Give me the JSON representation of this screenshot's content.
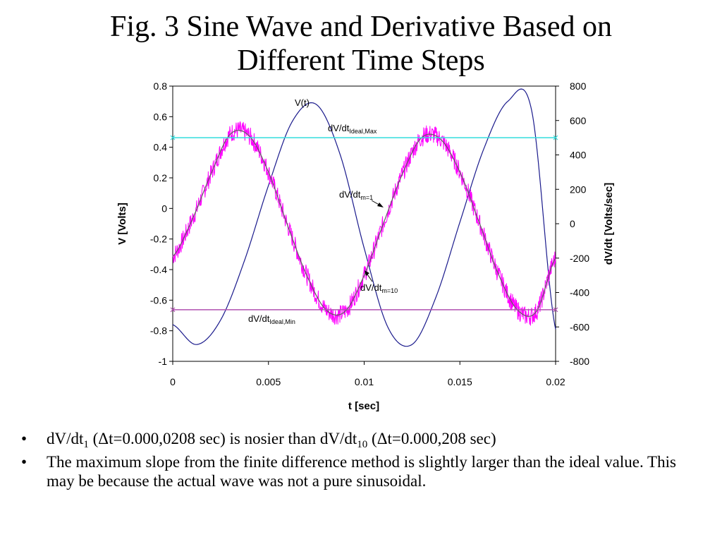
{
  "title": {
    "line1": "Fig. 3 Sine Wave and Derivative Based on",
    "line2": "Different Time Steps"
  },
  "chart_data": {
    "type": "line",
    "xlabel": "t [sec]",
    "ylabel_left": "V [Volts]",
    "ylabel_right": "dV/dt [Volts/sec]",
    "xlim": [
      0,
      0.02
    ],
    "ylim_left": [
      -1,
      0.8
    ],
    "ylim_right": [
      -800,
      800
    ],
    "x_ticks": [
      "0",
      "0.005",
      "0.01",
      "0.015",
      "0.02"
    ],
    "y_left_ticks": [
      "0.8",
      "0.6",
      "0.4",
      "0.2",
      "0",
      "-0.2",
      "-0.4",
      "-0.6",
      "-0.8",
      "-1"
    ],
    "y_right_ticks": [
      "800",
      "600",
      "400",
      "200",
      "0",
      "-200",
      "-400",
      "-600",
      "-800"
    ],
    "grid": false,
    "series": [
      {
        "name": "V(t)",
        "axis": "left",
        "color": "#1a1a8c",
        "frequency_hz": 100,
        "x": [
          0,
          0.00125,
          0.0025,
          0.00375,
          0.005,
          0.00625,
          0.0075,
          0.00875,
          0.01,
          0.01125,
          0.0125,
          0.01375,
          0.015,
          0.01625,
          0.0175,
          0.01875,
          0.02
        ],
        "y": [
          -0.76,
          -0.89,
          -0.73,
          -0.34,
          0.15,
          0.57,
          0.68,
          0.35,
          -0.26,
          -0.78,
          -0.89,
          -0.58,
          -0.09,
          0.39,
          0.7,
          0.64,
          -0.79
        ]
      },
      {
        "name": "dV/dt m=1",
        "axis": "right",
        "color": "#ff00ff",
        "noisy": true,
        "x": [
          0,
          0.001,
          0.002,
          0.003,
          0.004,
          0.005,
          0.006,
          0.007,
          0.008,
          0.009,
          0.01,
          0.011,
          0.012,
          0.013,
          0.014,
          0.015,
          0.016,
          0.017,
          0.018,
          0.019,
          0.02
        ],
        "y": [
          -190,
          20,
          290,
          520,
          510,
          300,
          -10,
          -300,
          -500,
          -510,
          -300,
          0,
          290,
          500,
          490,
          300,
          10,
          -290,
          -500,
          -510,
          -200
        ]
      },
      {
        "name": "dV/dt m=10",
        "axis": "right",
        "color": "#606060",
        "x": [
          0,
          0.001,
          0.002,
          0.003,
          0.004,
          0.005,
          0.006,
          0.007,
          0.008,
          0.009,
          0.01,
          0.011,
          0.012,
          0.013,
          0.014,
          0.015,
          0.016,
          0.017,
          0.018,
          0.019,
          0.02
        ],
        "y": [
          -190,
          20,
          290,
          520,
          510,
          300,
          -10,
          -300,
          -500,
          -510,
          -300,
          0,
          290,
          500,
          490,
          300,
          10,
          -290,
          -500,
          -510,
          -200
        ]
      },
      {
        "name": "dV/dt Ideal,Max",
        "axis": "right",
        "color": "#33dddd",
        "x": [
          0,
          0.02
        ],
        "y": [
          500,
          500
        ]
      },
      {
        "name": "dV/dt Ideal,Min",
        "axis": "right",
        "color": "#b050b0",
        "x": [
          0,
          0.02
        ],
        "y": [
          -500,
          -500
        ]
      }
    ],
    "annotations": {
      "vt": "V(t)",
      "ideal_max": {
        "base": "dV/dt",
        "sub": "Ideal,Max"
      },
      "m1": {
        "base": "dV/dt",
        "sub": "m=1"
      },
      "m10": {
        "base": "dV/dt",
        "sub": "m=10"
      },
      "ideal_min": {
        "base": "dV/dt",
        "sub": "Ideal,Min"
      }
    }
  },
  "bullets": {
    "b1": {
      "p1": "dV/dt",
      "s1": "1",
      "p2": " (Δt=0.000,0208 sec) is nosier than dV/dt",
      "s2": "10",
      "p3": " (Δt=0.000,208 sec)"
    },
    "b2": "The maximum slope from the finite difference method is slightly larger than the ideal value.  This may be because the actual wave was not a pure sinusoidal."
  }
}
